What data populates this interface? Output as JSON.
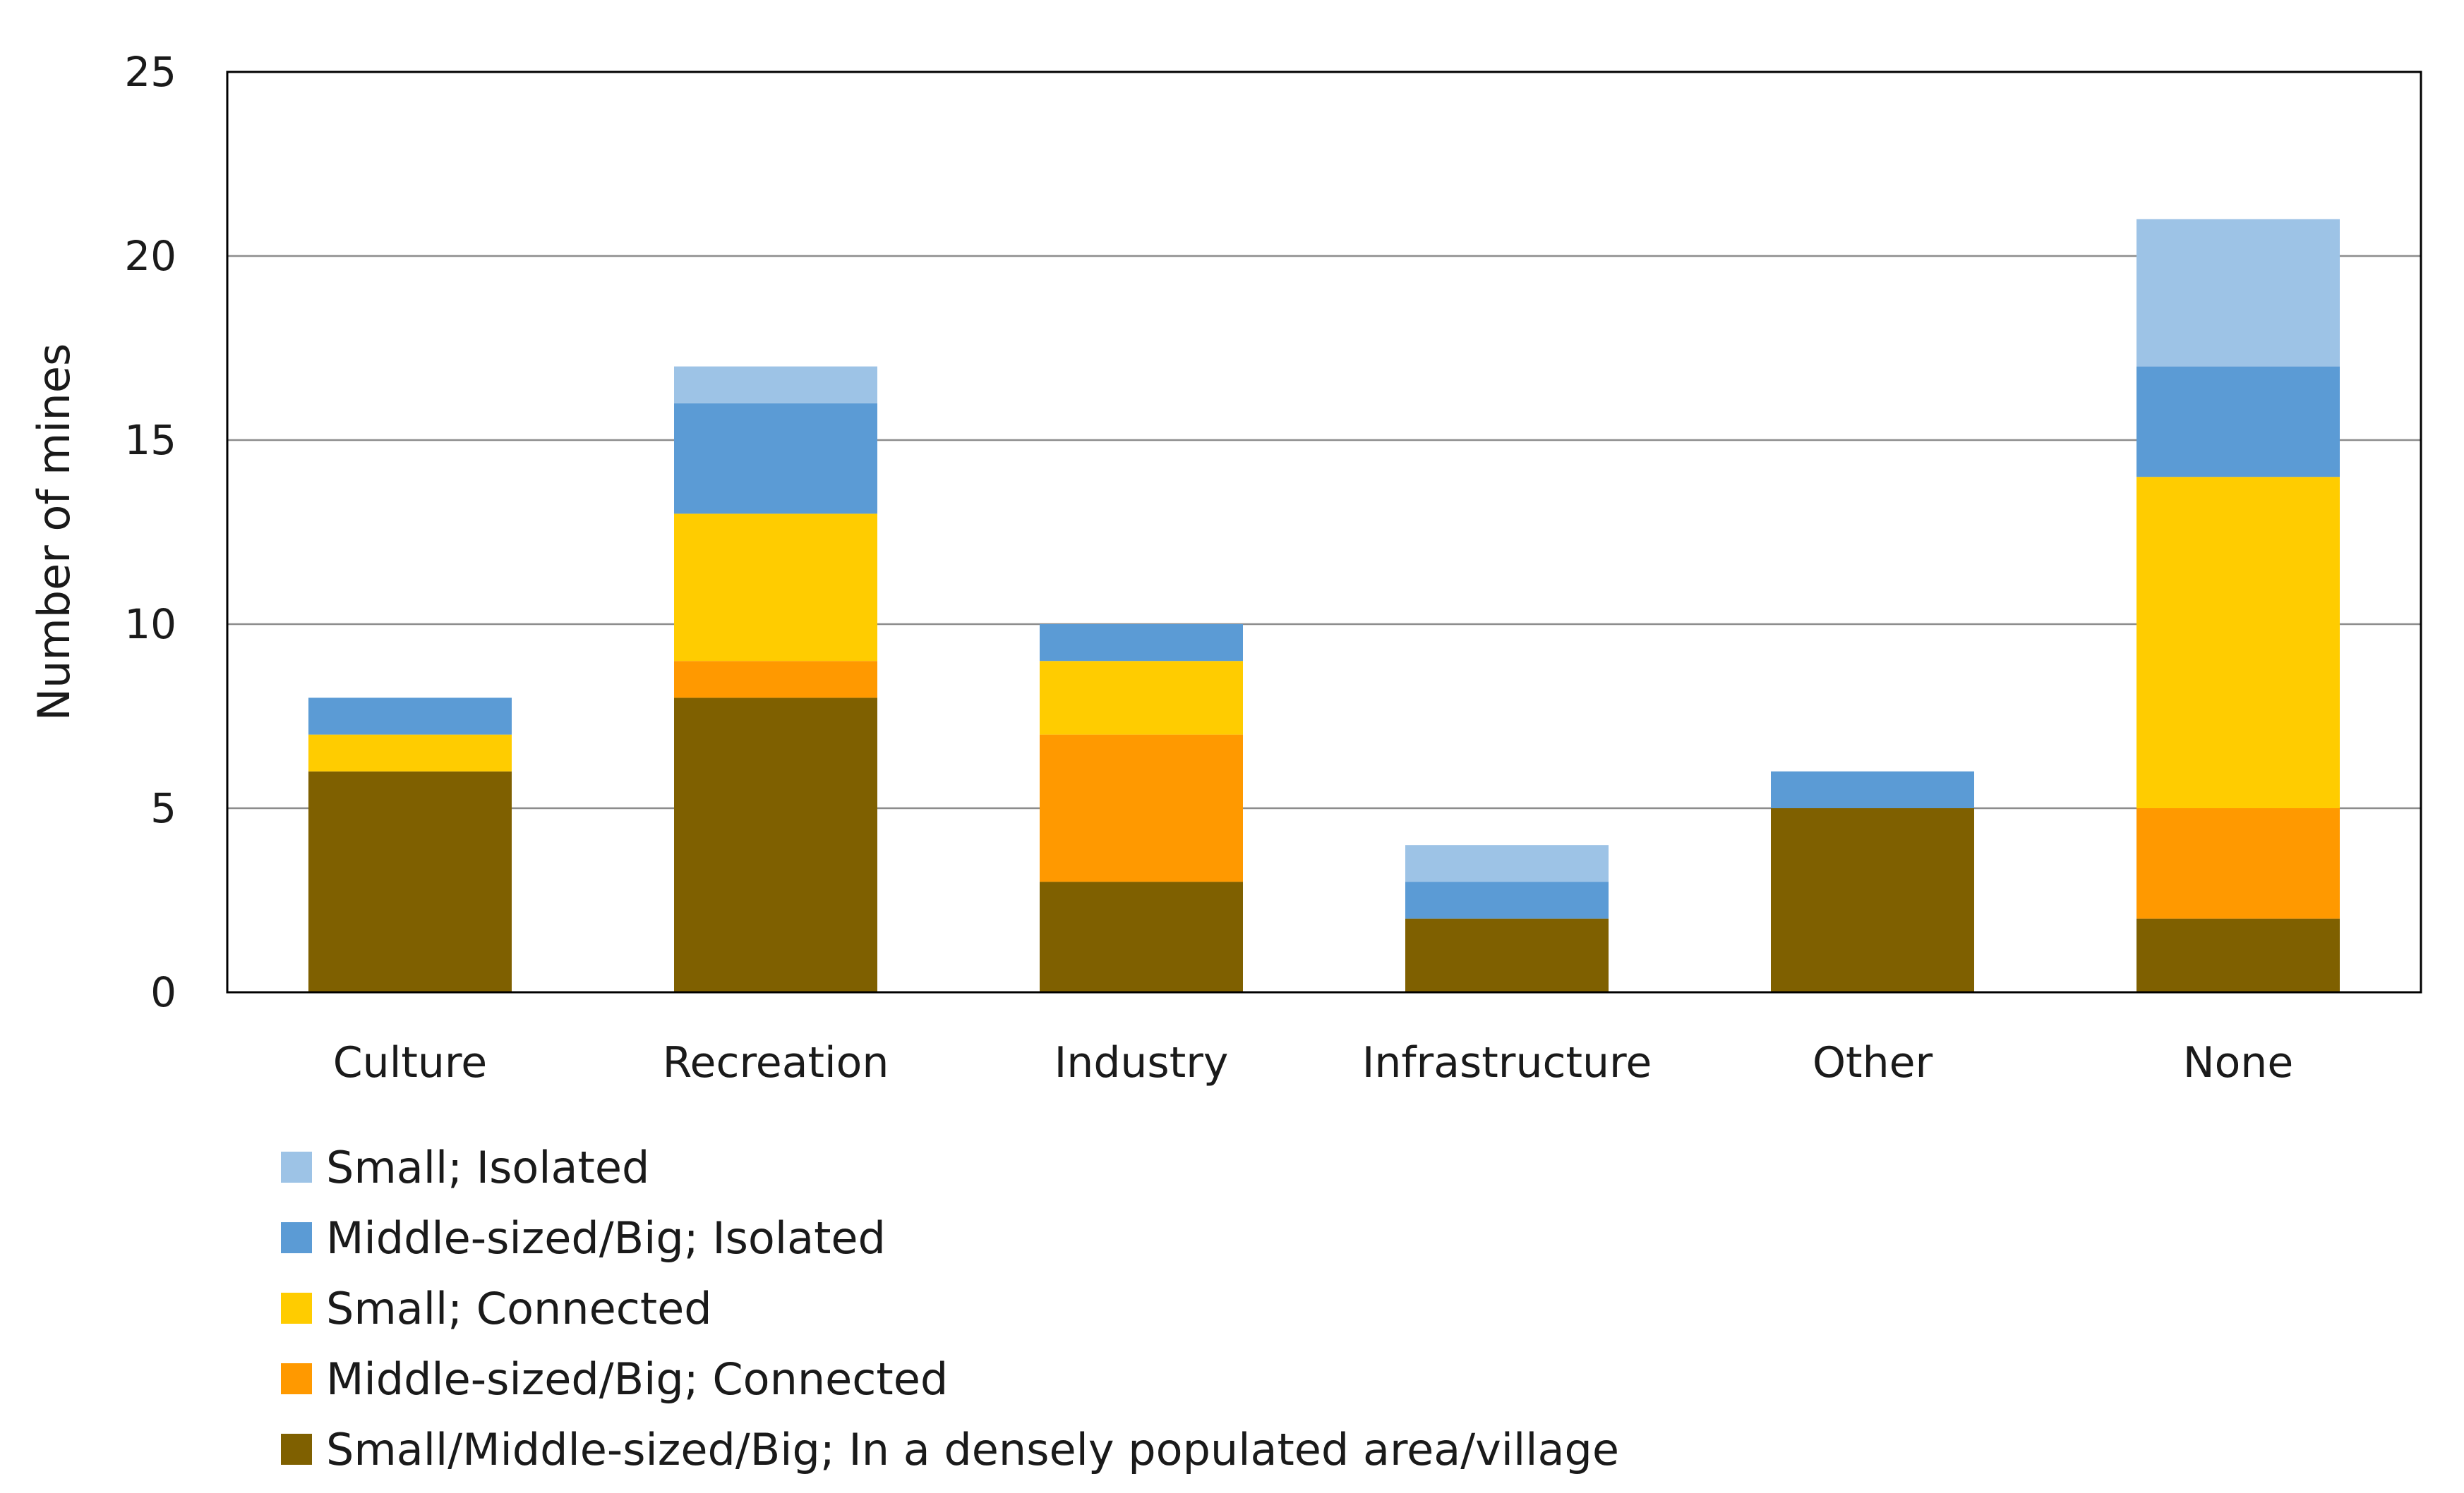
{
  "chart_data": {
    "type": "bar",
    "stacked": true,
    "title": "",
    "xlabel": "",
    "ylabel": "Number of mines",
    "ylim": [
      0,
      25
    ],
    "yticks": [
      0,
      5,
      10,
      15,
      20,
      25
    ],
    "grid": true,
    "legend_position": "bottom-left",
    "categories": [
      "Culture",
      "Recreation",
      "Industry",
      "Infrastructure",
      "Other",
      "None"
    ],
    "series": [
      {
        "name": "Small/Middle-sized/Big; In a densely populated area/village",
        "color": "#7f6000",
        "values": [
          6,
          8,
          3,
          2,
          5,
          2
        ]
      },
      {
        "name": "Middle-sized/Big; Connected",
        "color": "#ff9900",
        "values": [
          0,
          1,
          4,
          0,
          0,
          3
        ]
      },
      {
        "name": "Small; Connected",
        "color": "#ffcc00",
        "values": [
          1,
          4,
          2,
          0,
          0,
          9
        ]
      },
      {
        "name": "Middle-sized/Big; Isolated",
        "color": "#5b9bd5",
        "values": [
          1,
          3,
          1,
          1,
          1,
          3
        ]
      },
      {
        "name": "Small; Isolated",
        "color": "#9dc3e6",
        "values": [
          0,
          1,
          0,
          1,
          0,
          4
        ]
      }
    ],
    "legend_order": [
      4,
      3,
      2,
      1,
      0
    ]
  }
}
